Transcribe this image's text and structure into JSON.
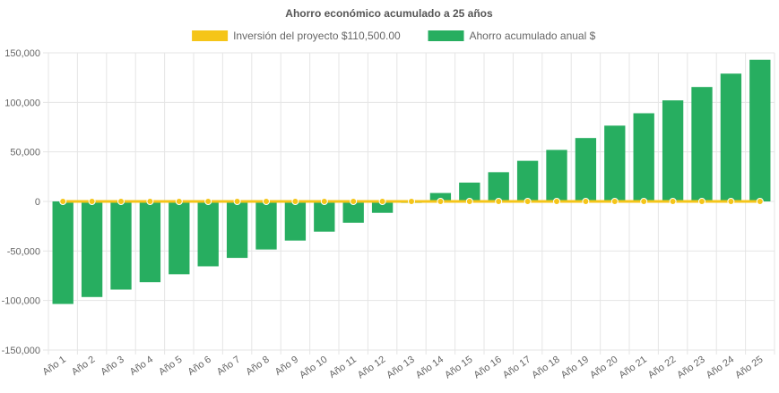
{
  "chart_data": {
    "type": "bar",
    "title": "Ahorro económico acumulado a 25 años",
    "categories": [
      "Año 1",
      "Año 2",
      "Año 3",
      "Año 4",
      "Año 5",
      "Año 6",
      "Año 7",
      "Año 8",
      "Año 9",
      "Año 10",
      "Año 11",
      "Año 12",
      "Año 13",
      "Año 14",
      "Año 15",
      "Año 16",
      "Año 17",
      "Año 18",
      "Año 19",
      "Año 20",
      "Año 21",
      "Año 22",
      "Año 23",
      "Año 24",
      "Año 25"
    ],
    "series": [
      {
        "name": "Inversión del proyecto $110,500.00",
        "type": "line",
        "color": "#f5c518",
        "values": [
          0,
          0,
          0,
          0,
          0,
          0,
          0,
          0,
          0,
          0,
          0,
          0,
          0,
          0,
          0,
          0,
          0,
          0,
          0,
          0,
          0,
          0,
          0,
          0,
          0
        ]
      },
      {
        "name": "Ahorro acumulado anual $",
        "type": "bar",
        "color": "#27ae60",
        "values": [
          -103500,
          -96500,
          -89000,
          -81500,
          -73500,
          -65500,
          -57000,
          -48500,
          -39500,
          -30500,
          -21500,
          -11500,
          -1500,
          8500,
          19000,
          29500,
          41000,
          52000,
          64000,
          76500,
          89000,
          102000,
          115500,
          129000,
          143000
        ]
      }
    ],
    "ylim": [
      -150000,
      150000
    ],
    "yticks": [
      150000,
      100000,
      50000,
      0,
      -50000,
      -100000,
      -150000
    ],
    "ytick_labels": [
      "150,000",
      "100,000",
      "50,000",
      "0",
      "-50,000",
      "-100,000",
      "-150,000"
    ],
    "grid": true,
    "legend_position": "top"
  }
}
